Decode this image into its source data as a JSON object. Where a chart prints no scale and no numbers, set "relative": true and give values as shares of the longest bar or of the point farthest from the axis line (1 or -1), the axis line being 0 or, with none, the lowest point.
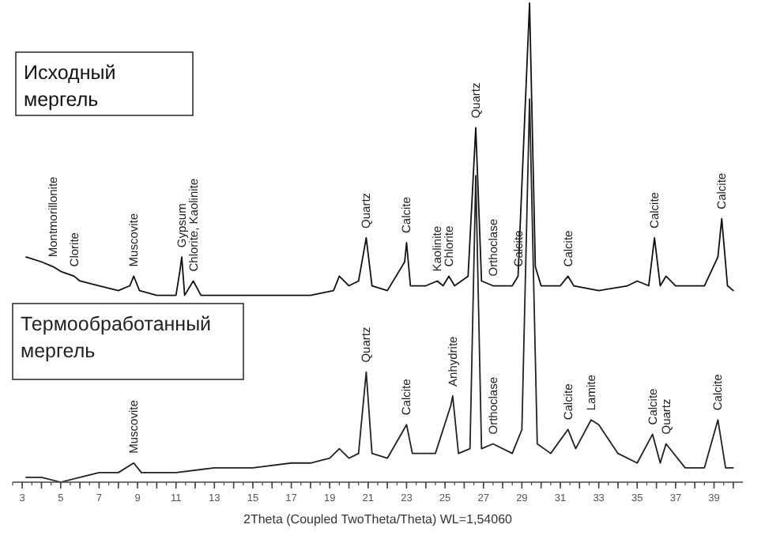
{
  "chart_data": {
    "type": "line",
    "relative": true,
    "xlabel": "2Theta (Coupled TwoTheta/Theta) WL=1,54060",
    "xlim": [
      2.5,
      40.5
    ],
    "xticks": [
      3,
      {
        "value": 4,
        "label": null
      },
      5,
      {
        "value": 6,
        "label": null
      },
      7,
      {
        "value": 8,
        "label": null
      },
      9,
      {
        "value": 10,
        "label": null
      },
      11,
      {
        "value": 12,
        "label": null
      },
      13,
      {
        "value": 14,
        "label": null
      },
      15,
      {
        "value": 16,
        "label": null
      },
      17,
      {
        "value": 18,
        "label": null
      },
      19,
      {
        "value": 20,
        "label": null
      },
      21,
      {
        "value": 22,
        "label": null
      },
      23,
      {
        "value": 24,
        "label": null
      },
      25,
      {
        "value": 26,
        "label": null
      },
      27,
      {
        "value": 28,
        "label": null
      },
      29,
      {
        "value": 30,
        "label": null
      },
      31,
      {
        "value": 32,
        "label": null
      },
      33,
      {
        "value": 34,
        "label": null
      },
      35,
      {
        "value": 36,
        "label": null
      },
      37,
      {
        "value": 38,
        "label": null
      },
      39,
      {
        "value": 40,
        "label": null
      }
    ],
    "legend": false,
    "grid": false,
    "marker": "none",
    "line_style": "solid",
    "series": [
      {
        "name": "Исходный мергель",
        "color": "#111111",
        "x": [
          3.2,
          4,
          4.6,
          5,
          5.7,
          6,
          7,
          8,
          8.6,
          8.8,
          9.1,
          10,
          11,
          11.2,
          11.3,
          11.45,
          11.9,
          12.3,
          14,
          16,
          18,
          19.2,
          19.5,
          20,
          20.5,
          20.9,
          21.2,
          22,
          22.9,
          23,
          23.2,
          24,
          24.6,
          24.9,
          25.2,
          25.5,
          26.2,
          26.6,
          26.9,
          27.5,
          28.5,
          28.8,
          29.4,
          29.7,
          30,
          31,
          31.4,
          31.7,
          33,
          34.5,
          35,
          35.6,
          35.9,
          36.2,
          36.5,
          37,
          38.5,
          39.2,
          39.4,
          39.7,
          40
        ],
        "values": [
          0.47,
          0.46,
          0.45,
          0.44,
          0.43,
          0.42,
          0.41,
          0.4,
          0.41,
          0.43,
          0.4,
          0.39,
          0.39,
          0.44,
          0.47,
          0.39,
          0.42,
          0.39,
          0.39,
          0.39,
          0.39,
          0.4,
          0.43,
          0.41,
          0.42,
          0.51,
          0.41,
          0.4,
          0.46,
          0.5,
          0.41,
          0.41,
          0.42,
          0.41,
          0.43,
          0.41,
          0.43,
          0.74,
          0.42,
          0.41,
          0.41,
          0.43,
          1,
          0.45,
          0.41,
          0.41,
          0.43,
          0.41,
          0.4,
          0.41,
          0.42,
          0.41,
          0.51,
          0.41,
          0.43,
          0.41,
          0.41,
          0.47,
          0.55,
          0.41,
          0.4
        ]
      },
      {
        "name": "Термообработанный мергель",
        "color": "#222222",
        "x": [
          3.2,
          4,
          5,
          6,
          7,
          8,
          8.8,
          9.2,
          11,
          13,
          15,
          17,
          18,
          19,
          19.5,
          20,
          20.5,
          20.9,
          21.2,
          22,
          23,
          23.3,
          24.5,
          25.3,
          25.4,
          25.7,
          26.3,
          26.6,
          26.9,
          27.5,
          28.5,
          29,
          29.4,
          29.8,
          30.5,
          31.4,
          31.8,
          32.6,
          33,
          33.5,
          34,
          35,
          35.8,
          36.2,
          36.5,
          37.5,
          38.5,
          39.2,
          39.6,
          40
        ],
        "values": [
          0.01,
          0.01,
          0,
          0.01,
          0.02,
          0.02,
          0.04,
          0.02,
          0.02,
          0.03,
          0.03,
          0.04,
          0.04,
          0.05,
          0.07,
          0.05,
          0.06,
          0.23,
          0.06,
          0.05,
          0.12,
          0.06,
          0.06,
          0.16,
          0.18,
          0.06,
          0.07,
          0.64,
          0.07,
          0.08,
          0.06,
          0.11,
          0.8,
          0.08,
          0.06,
          0.11,
          0.07,
          0.13,
          0.12,
          0.09,
          0.06,
          0.04,
          0.1,
          0.04,
          0.08,
          0.03,
          0.03,
          0.13,
          0.03,
          0.03
        ]
      }
    ],
    "annotations": [
      {
        "text": "Montmorillonite",
        "x": 4.6,
        "y": 0.45
      },
      {
        "text": "Clorite",
        "x": 5.7,
        "y": 0.43
      },
      {
        "text": "Muscovite",
        "x": 8.8,
        "y": 0.43
      },
      {
        "text": "Gypsum",
        "x": 11.3,
        "y": 0.47
      },
      {
        "text": "Chlorite, Kaolinite",
        "x": 11.9,
        "y": 0.42
      },
      {
        "text": "Quartz",
        "x": 20.9,
        "y": 0.51
      },
      {
        "text": "Calcite",
        "x": 23,
        "y": 0.5
      },
      {
        "text": "Kaolinite",
        "x": 24.6,
        "y": 0.42
      },
      {
        "text": "Chlorite",
        "x": 25.2,
        "y": 0.43
      },
      {
        "text": "Quartz",
        "x": 26.6,
        "y": 0.74
      },
      {
        "text": "Orthoclase",
        "x": 27.5,
        "y": 0.41
      },
      {
        "text": "Calcite",
        "x": 28.8,
        "y": 0.43
      },
      {
        "text": "Calcite",
        "x": 31.4,
        "y": 0.43
      },
      {
        "text": "Calcite",
        "x": 35.9,
        "y": 0.51
      },
      {
        "text": "Calcite",
        "x": 39.4,
        "y": 0.55
      },
      {
        "text": "Muscovite",
        "x": 8.8,
        "y": 0.04
      },
      {
        "text": "Quartz",
        "x": 20.9,
        "y": 0.23
      },
      {
        "text": "Calcite",
        "x": 23,
        "y": 0.12
      },
      {
        "text": "Anhydrite",
        "x": 25.4,
        "y": 0.18
      },
      {
        "text": "Orthoclase",
        "x": 27.5,
        "y": 0.08
      },
      {
        "text": "Calcite",
        "x": 31.4,
        "y": 0.11
      },
      {
        "text": "Lamite",
        "x": 32.6,
        "y": 0.13
      },
      {
        "text": "Calcite",
        "x": 35.8,
        "y": 0.1
      },
      {
        "text": "Quartz",
        "x": 36.5,
        "y": 0.08
      },
      {
        "text": "Calcite",
        "x": 39.2,
        "y": 0.13
      }
    ]
  }
}
